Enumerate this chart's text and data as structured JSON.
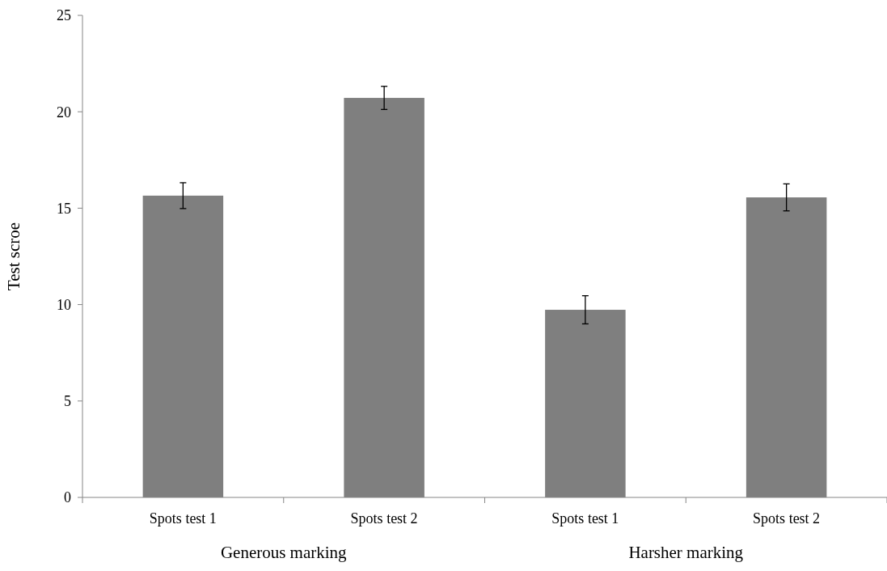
{
  "chart_data": {
    "type": "bar",
    "ylabel": "Test scroe",
    "categories": [
      "Spots test 1",
      "Spots test 2",
      "Spots test 1",
      "Spots test 2"
    ],
    "values": [
      15.65,
      20.72,
      9.73,
      15.56
    ],
    "errors": [
      0.67,
      0.6,
      0.73,
      0.7
    ],
    "color": "#7f7f7f",
    "ylim": [
      0,
      25
    ],
    "yticks": [
      0,
      5,
      10,
      15,
      20,
      25
    ],
    "grid": false,
    "annotations": [
      "Generous marking",
      "Harsher marking"
    ]
  }
}
